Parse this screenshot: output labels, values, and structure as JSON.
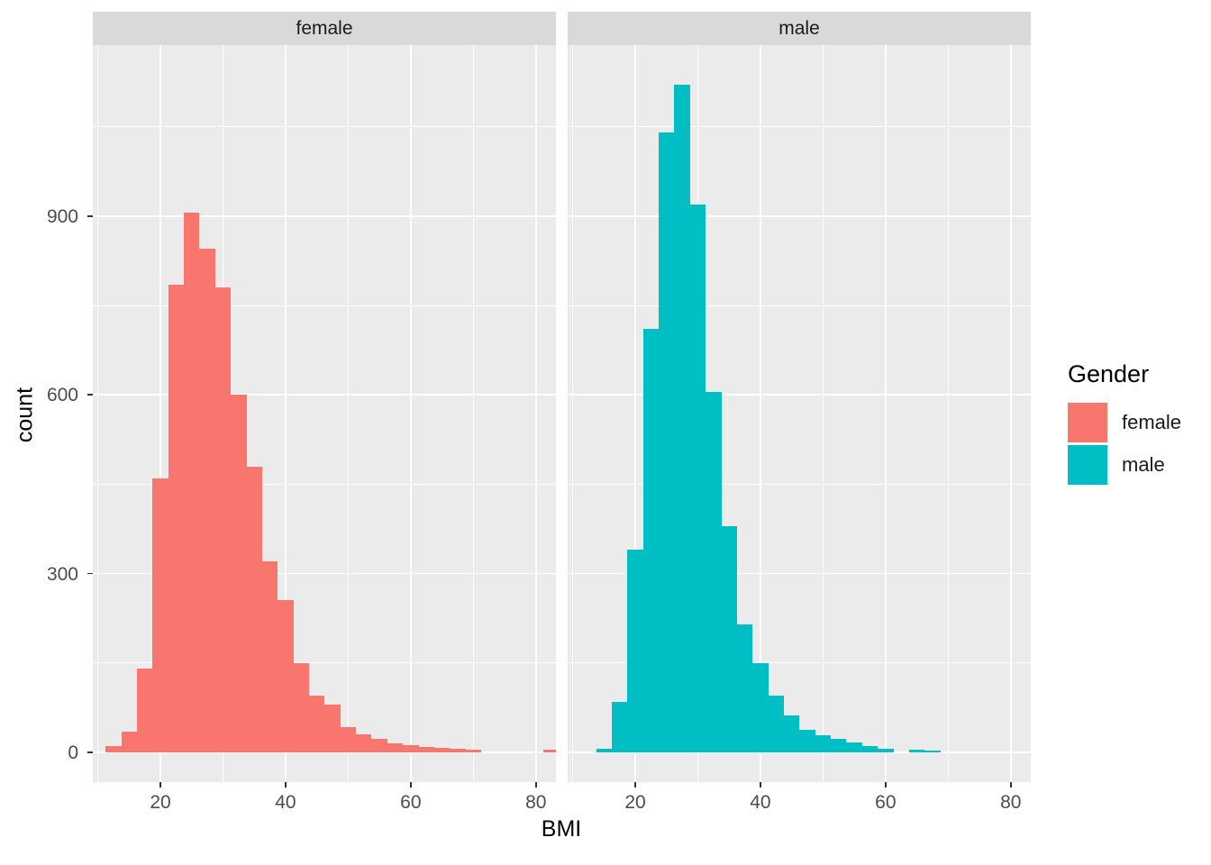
{
  "chart_data": {
    "type": "bar",
    "subtype": "faceted-histogram",
    "title": "",
    "xlabel": "BMI",
    "ylabel": "count",
    "binwidth": 2.5,
    "xlim": [
      9.2,
      83.2
    ],
    "ylim": [
      -50,
      1187
    ],
    "x_major_ticks": [
      20,
      40,
      60,
      80
    ],
    "x_minor_ticks": [
      10,
      30,
      50,
      70
    ],
    "y_major_ticks": [
      0,
      300,
      600,
      900
    ],
    "y_minor_ticks": [
      150,
      450,
      750,
      1050
    ],
    "grid": true,
    "colors": {
      "panel_background": "#EBEBEB",
      "strip_background": "#D9D9D9",
      "gridline": "#FFFFFF",
      "female": "#F8766D",
      "male": "#00BFC4"
    },
    "legend": {
      "title": "Gender",
      "position": "right",
      "items": [
        {
          "label": "female",
          "color": "#F8766D"
        },
        {
          "label": "male",
          "color": "#00BFC4"
        }
      ]
    },
    "facets": [
      {
        "label": "female",
        "color": "#F8766D",
        "bin_centers": [
          12.5,
          15,
          17.5,
          20,
          22.5,
          25,
          27.5,
          30,
          32.5,
          35,
          37.5,
          40,
          42.5,
          45,
          47.5,
          50,
          52.5,
          55,
          57.5,
          60,
          62.5,
          65,
          67.5,
          70,
          72.5,
          75,
          77.5,
          80,
          82.5
        ],
        "counts": [
          10,
          35,
          140,
          460,
          785,
          905,
          845,
          780,
          600,
          480,
          320,
          255,
          150,
          95,
          80,
          42,
          30,
          22,
          15,
          12,
          9,
          7,
          6,
          4,
          0,
          0,
          0,
          0,
          4
        ]
      },
      {
        "label": "male",
        "color": "#00BFC4",
        "bin_centers": [
          15,
          17.5,
          20,
          22.5,
          25,
          27.5,
          30,
          32.5,
          35,
          37.5,
          40,
          42.5,
          45,
          47.5,
          50,
          52.5,
          55,
          57.5,
          60,
          62.5,
          65,
          67.5
        ],
        "counts": [
          6,
          85,
          340,
          710,
          1040,
          1120,
          920,
          605,
          380,
          215,
          150,
          95,
          62,
          38,
          28,
          22,
          16,
          10,
          6,
          0,
          4,
          3
        ]
      }
    ]
  }
}
